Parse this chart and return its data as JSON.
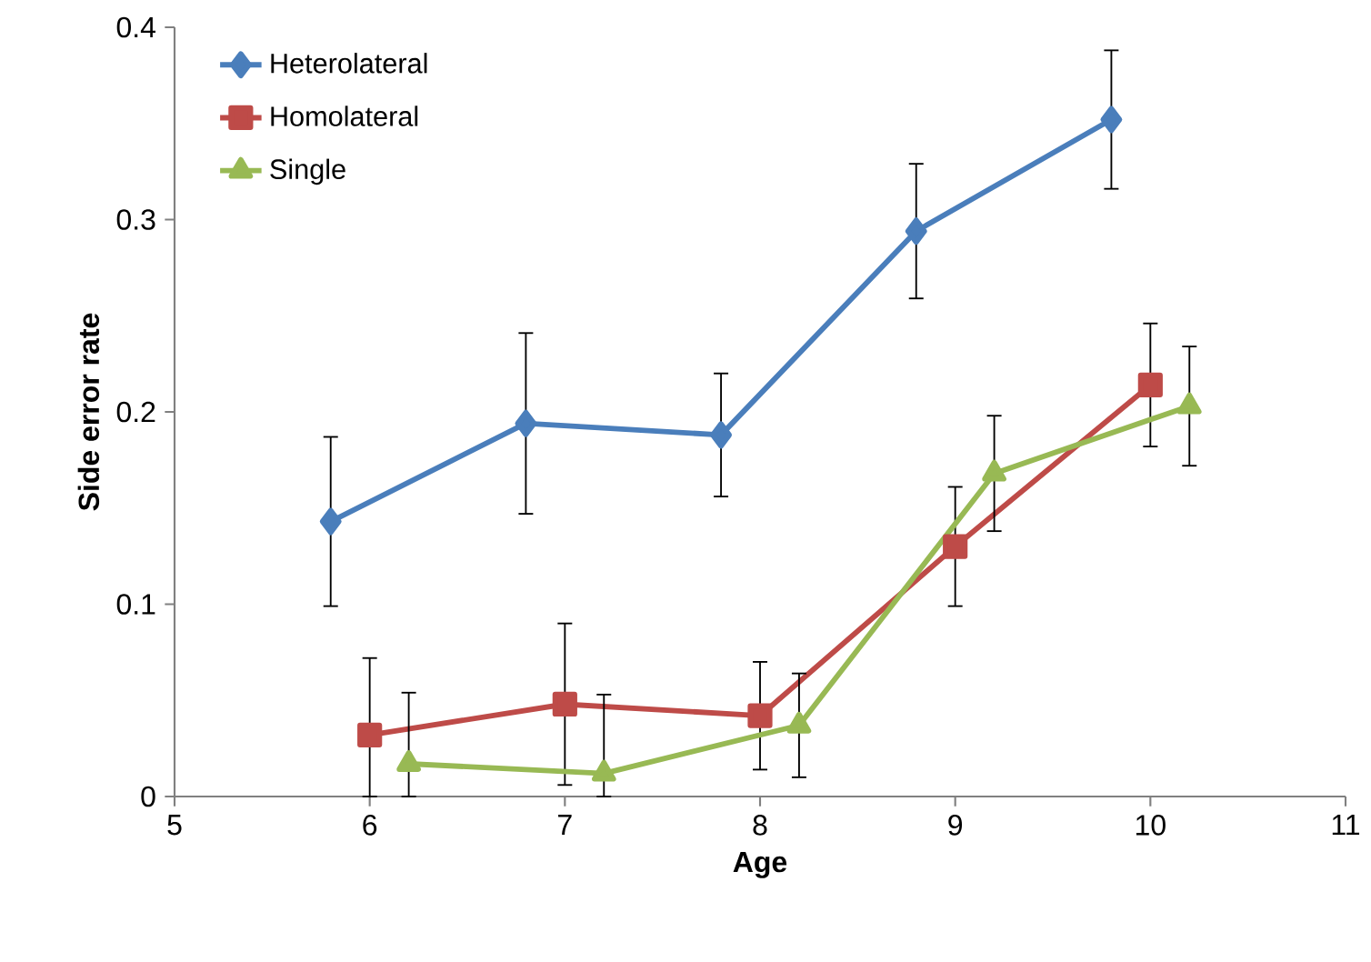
{
  "chart_data": {
    "type": "line",
    "xlabel": "Age",
    "ylabel": "Side error rate",
    "xlim": [
      5,
      11
    ],
    "xticks": [
      5,
      6,
      7,
      8,
      9,
      10,
      11
    ],
    "ylim": [
      0,
      0.4
    ],
    "yticks": [
      0,
      0.1,
      0.2,
      0.3,
      0.4
    ],
    "grid": false,
    "legend": "top left",
    "line_style": "solid",
    "series": [
      {
        "name": "Heterolateral",
        "color": "#4a7ebb",
        "marker": "diamond",
        "x": [
          5.8,
          6.8,
          7.8,
          8.8,
          9.8
        ],
        "values": [
          0.143,
          0.194,
          0.188,
          0.294,
          0.352
        ],
        "errors": [
          0.044,
          0.047,
          0.032,
          0.035,
          0.036
        ]
      },
      {
        "name": "Homolateral",
        "color": "#be4b48",
        "marker": "square",
        "x": [
          6.0,
          7.0,
          8.0,
          9.0,
          10.0
        ],
        "values": [
          0.032,
          0.048,
          0.042,
          0.13,
          0.214
        ],
        "errors": [
          [
            0,
            0.072
          ],
          0.042,
          0.028,
          0.031,
          0.032
        ]
      },
      {
        "name": "Single",
        "color": "#98b954",
        "marker": "triangle",
        "x": [
          6.2,
          7.2,
          8.2,
          9.2,
          10.2
        ],
        "values": [
          0.017,
          0.012,
          0.037,
          0.168,
          0.203
        ],
        "errors": [
          [
            0,
            0.054
          ],
          [
            0,
            0.053
          ],
          0.027,
          0.03,
          0.031
        ]
      }
    ]
  }
}
